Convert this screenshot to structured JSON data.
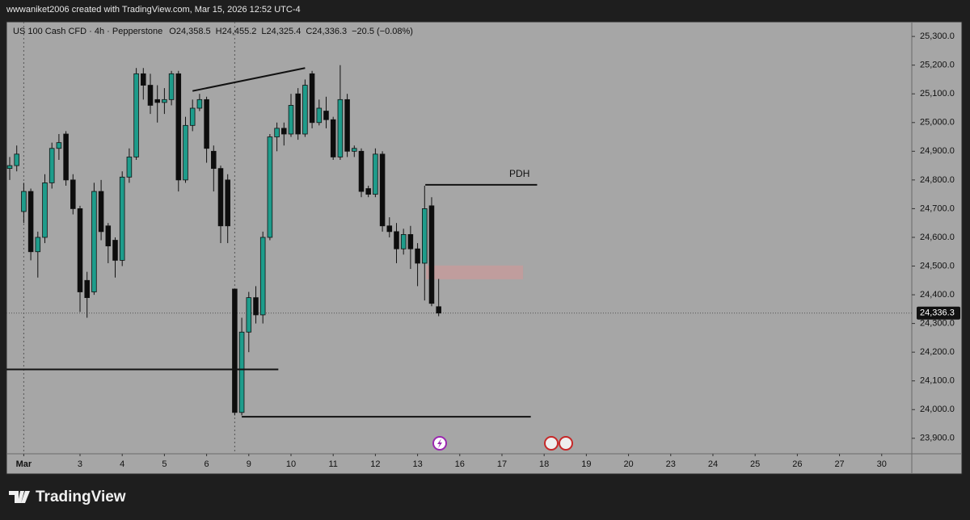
{
  "attribution": "wwwaniket2006 created with TradingView.com, Mar 15, 2026 12:52 UTC-4",
  "brand": "TradingView",
  "chart_data": {
    "type": "candlestick",
    "title": "US 100 Cash CFD · 4h · Pepperstone",
    "legend_values": [
      "O24,358.5",
      "H24,455.2",
      "L24,325.4",
      "C24,336.3",
      "−20.5 (−0.08%)"
    ],
    "open": [
      24840,
      24850,
      24690,
      24760,
      24550,
      24600,
      24790,
      24910,
      24960,
      24800,
      24700,
      24450,
      24410,
      24760,
      24640,
      24590,
      24520,
      24810,
      24880,
      25170,
      25130,
      25080,
      25070,
      25080,
      25170,
      24800,
      24990,
      25050,
      25080,
      24900,
      24840,
      24800,
      24420,
      23990,
      24270,
      24390,
      24330,
      24600,
      24950,
      24980,
      24960,
      25100,
      24960,
      25170,
      25000,
      25040,
      25010,
      24880,
      25080,
      24900,
      24900,
      24770,
      24750,
      24890,
      24640,
      24620,
      24560,
      24610,
      24560,
      24510,
      24710,
      24358.5
    ],
    "high": [
      24880,
      24920,
      24790,
      24770,
      24620,
      24820,
      24930,
      24960,
      24970,
      24820,
      24710,
      24480,
      24790,
      24800,
      24650,
      24600,
      24830,
      24910,
      25190,
      25190,
      25170,
      25130,
      25120,
      25180,
      25180,
      25020,
      25080,
      25100,
      25090,
      24920,
      24850,
      24820,
      24420,
      24320,
      24410,
      24430,
      24620,
      24960,
      25000,
      25000,
      25100,
      25120,
      25150,
      25180,
      25080,
      25090,
      25020,
      25200,
      25100,
      24920,
      24910,
      24780,
      24910,
      24900,
      24670,
      24650,
      24630,
      24640,
      24580,
      24780,
      24740,
      24455.2
    ],
    "low": [
      24800,
      24830,
      24650,
      24520,
      24460,
      24580,
      24770,
      24870,
      24780,
      24680,
      24340,
      24320,
      24400,
      24590,
      24510,
      24460,
      24500,
      24790,
      24870,
      25080,
      25030,
      25000,
      25030,
      25060,
      24760,
      24790,
      24970,
      25040,
      24860,
      24760,
      24580,
      24580,
      23980,
      23980,
      24200,
      24300,
      24300,
      24590,
      24900,
      24920,
      24950,
      24940,
      24950,
      24980,
      24990,
      24980,
      24870,
      24870,
      24880,
      24880,
      24740,
      24740,
      24740,
      24620,
      24600,
      24510,
      24540,
      24490,
      24430,
      24380,
      24360,
      24325.4
    ],
    "close": [
      24850,
      24890,
      24760,
      24550,
      24600,
      24790,
      24910,
      24930,
      24800,
      24700,
      24410,
      24390,
      24760,
      24620,
      24570,
      24520,
      24810,
      24880,
      25170,
      25130,
      25060,
      25070,
      25080,
      25170,
      24800,
      24990,
      25050,
      25080,
      24910,
      24840,
      24640,
      24640,
      23990,
      24270,
      24390,
      24330,
      24600,
      24950,
      24980,
      24960,
      25060,
      24960,
      25130,
      25000,
      25050,
      25010,
      24880,
      25080,
      24900,
      24910,
      24760,
      24750,
      24890,
      24640,
      24620,
      24560,
      24610,
      24560,
      24510,
      24700,
      24370,
      24336.3
    ],
    "up_color": "#1e9c8b",
    "down_color": "#0d0d0d",
    "last_price": {
      "value": 24336.3,
      "label": "24,336.3"
    },
    "xlim": [
      -0.46,
      128.28
    ],
    "ylim": [
      23846,
      25351
    ],
    "xticks": [
      {
        "value": 2,
        "label": "Mar"
      },
      {
        "value": 10,
        "label": "3"
      },
      {
        "value": 16,
        "label": "4"
      },
      {
        "value": 22,
        "label": "5"
      },
      {
        "value": 28,
        "label": "6"
      },
      {
        "value": 34,
        "label": "9"
      },
      {
        "value": 40,
        "label": "10"
      },
      {
        "value": 46,
        "label": "11"
      },
      {
        "value": 52,
        "label": "12"
      },
      {
        "value": 58,
        "label": "13"
      },
      {
        "value": 64,
        "label": "16"
      },
      {
        "value": 70,
        "label": "17"
      },
      {
        "value": 76,
        "label": "18"
      },
      {
        "value": 82,
        "label": "19"
      },
      {
        "value": 88,
        "label": "20"
      },
      {
        "value": 94,
        "label": "23"
      },
      {
        "value": 100,
        "label": "24"
      },
      {
        "value": 106,
        "label": "25"
      },
      {
        "value": 112,
        "label": "26"
      },
      {
        "value": 118,
        "label": "27"
      },
      {
        "value": 124,
        "label": "30"
      }
    ],
    "yticks": [
      {
        "value": 25300,
        "label": "25,300.0"
      },
      {
        "value": 25200,
        "label": "25,200.0"
      },
      {
        "value": 25100,
        "label": "25,100.0"
      },
      {
        "value": 25000,
        "label": "25,000.0"
      },
      {
        "value": 24900,
        "label": "24,900.0"
      },
      {
        "value": 24800,
        "label": "24,800.0"
      },
      {
        "value": 24700,
        "label": "24,700.0"
      },
      {
        "value": 24600,
        "label": "24,600.0"
      },
      {
        "value": 24500,
        "label": "24,500.0"
      },
      {
        "value": 24400,
        "label": "24,400.0"
      },
      {
        "value": 24300,
        "label": "24,300.0"
      },
      {
        "value": 24200,
        "label": "24,200.0"
      },
      {
        "value": 24100,
        "label": "24,100.0"
      },
      {
        "value": 24000,
        "label": "24,000.0"
      },
      {
        "value": 23900,
        "label": "23,900.0"
      }
    ],
    "session_lines": [
      2,
      32
    ],
    "lines": [
      {
        "x": [
          26,
          42
        ],
        "y": [
          25110,
          25190
        ]
      },
      {
        "x": [
          -0.46,
          38.2
        ],
        "y": [
          24140,
          24140
        ]
      },
      {
        "x": [
          33,
          74.1
        ],
        "y": [
          23975,
          23975
        ]
      },
      {
        "x": [
          59.1,
          75
        ],
        "y": [
          24783,
          24783
        ]
      }
    ],
    "zone": {
      "x": [
        59.2,
        73
      ],
      "y": [
        24454,
        24502
      ]
    },
    "annotations": [
      {
        "text": "PDH",
        "x": 72.5,
        "y": 24820
      }
    ]
  }
}
